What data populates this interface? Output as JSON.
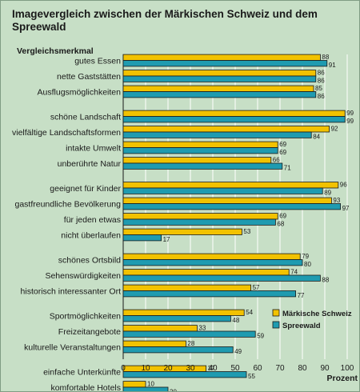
{
  "title": "Imagevergleich zwischen der Märkischen Schweiz und dem Spreewald",
  "colors": {
    "background": "#c7dfc6",
    "series_a": "#f2c200",
    "series_b": "#1f9bb0",
    "grid": "#ffffff"
  },
  "chart_data": {
    "type": "bar",
    "orientation": "horizontal",
    "title": "Imagevergleich zwischen der Märkischen Schweiz und dem Spreewald",
    "category_header": "Vergleichsmerkmal",
    "xlabel": "Prozent",
    "xlim": [
      0,
      100
    ],
    "xticks": [
      0,
      10,
      20,
      30,
      40,
      50,
      60,
      70,
      80,
      90,
      100
    ],
    "grid": true,
    "legend_position": "right",
    "groups": [
      3,
      4,
      4,
      3,
      3,
      2
    ],
    "categories": [
      "gutes Essen",
      "nette Gaststätten",
      "Ausflugsmöglichkeiten",
      "schöne Landschaft",
      "vielfältige Landschaftsformen",
      "intakte Umwelt",
      "unberührte Natur",
      "geeignet für Kinder",
      "gastfreundliche Bevölkerung",
      "für jeden etwas",
      "nicht überlaufen",
      "schönes Ortsbild",
      "Sehenswürdigkeiten",
      "historisch interessanter Ort",
      "Sportmöglichkeiten",
      "Freizeitangebote",
      "kulturelle Veranstaltungen",
      "einfache Unterkünfte",
      "komfortable Hotels"
    ],
    "series": [
      {
        "name": "Märkische Schweiz",
        "color": "#f2c200",
        "values": [
          88,
          86,
          85,
          99,
          92,
          69,
          66,
          96,
          93,
          69,
          53,
          79,
          74,
          57,
          54,
          33,
          28,
          37,
          10
        ]
      },
      {
        "name": "Spreewald",
        "color": "#1f9bb0",
        "values": [
          91,
          86,
          86,
          99,
          84,
          69,
          71,
          89,
          97,
          68,
          17,
          80,
          88,
          77,
          48,
          59,
          49,
          55,
          20
        ]
      }
    ]
  }
}
